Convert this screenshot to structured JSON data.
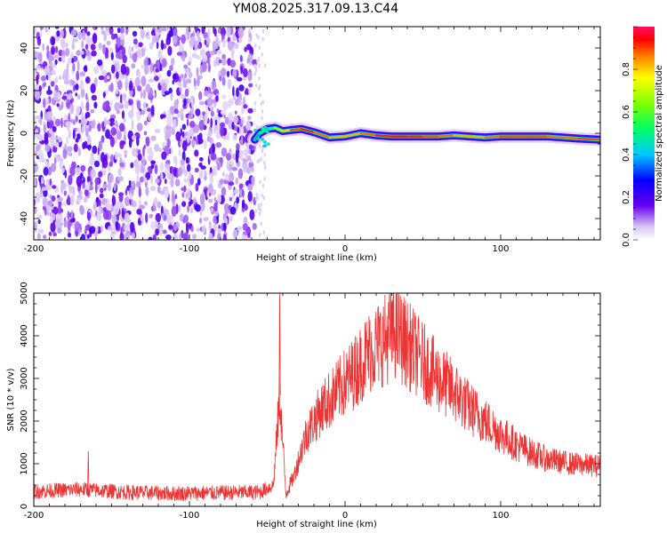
{
  "title": "YM08.2025.317.09.13.C44",
  "chart_data": [
    {
      "type": "heatmap",
      "title": "YM08.2025.317.09.13.C44",
      "xlabel": "Height of straight line (km)",
      "ylabel": "Frequency (Hz)",
      "xlim": [
        -200,
        164
      ],
      "ylim": [
        -50,
        50
      ],
      "x_ticks": [
        "-200",
        "-100",
        "0",
        "100"
      ],
      "y_ticks": [
        "40",
        "20",
        "0",
        "-20",
        "-40"
      ],
      "colorbar": {
        "label": "Normalized spectral amplitude",
        "range": [
          0,
          1
        ],
        "ticks": [
          "0.0",
          "0.2",
          "0.4",
          "0.6",
          "0.8"
        ]
      },
      "noise_region_x": [
        -200,
        -58
      ],
      "signal_track": [
        {
          "x": -58,
          "freq": -3,
          "amp": 0.3
        },
        {
          "x": -55,
          "freq": 0,
          "amp": 0.45
        },
        {
          "x": -50,
          "freq": 2,
          "amp": 0.5
        },
        {
          "x": -45,
          "freq": 2.5,
          "amp": 0.6
        },
        {
          "x": -40,
          "freq": 1,
          "amp": 0.75
        },
        {
          "x": -35,
          "freq": 1.5,
          "amp": 0.85
        },
        {
          "x": -28,
          "freq": 2,
          "amp": 0.95
        },
        {
          "x": -20,
          "freq": 0.5,
          "amp": 0.9
        },
        {
          "x": -10,
          "freq": -2,
          "amp": 0.85
        },
        {
          "x": 0,
          "freq": -1.5,
          "amp": 0.8
        },
        {
          "x": 10,
          "freq": 0,
          "amp": 0.85
        },
        {
          "x": 20,
          "freq": -1,
          "amp": 0.9
        },
        {
          "x": 30,
          "freq": -1.5,
          "amp": 0.95
        },
        {
          "x": 40,
          "freq": -1.5,
          "amp": 0.95
        },
        {
          "x": 50,
          "freq": -1.5,
          "amp": 0.9
        },
        {
          "x": 60,
          "freq": -1.5,
          "amp": 0.9
        },
        {
          "x": 70,
          "freq": -1,
          "amp": 0.85
        },
        {
          "x": 80,
          "freq": -1.5,
          "amp": 0.8
        },
        {
          "x": 90,
          "freq": -2,
          "amp": 0.85
        },
        {
          "x": 100,
          "freq": -1.5,
          "amp": 0.9
        },
        {
          "x": 110,
          "freq": -1.5,
          "amp": 0.9
        },
        {
          "x": 120,
          "freq": -1.5,
          "amp": 0.9
        },
        {
          "x": 130,
          "freq": -1.5,
          "amp": 0.9
        },
        {
          "x": 140,
          "freq": -2,
          "amp": 0.85
        },
        {
          "x": 150,
          "freq": -2.5,
          "amp": 0.9
        },
        {
          "x": 164,
          "freq": -3,
          "amp": 0.9
        }
      ]
    },
    {
      "type": "line",
      "xlabel": "Height of straight line (km)",
      "ylabel": "SNR (10 * v/v)",
      "xlim": [
        -200,
        164
      ],
      "ylim": [
        0,
        5000
      ],
      "x_ticks": [
        "-200",
        "-100",
        "0",
        "100"
      ],
      "y_ticks": [
        "5000",
        "4000",
        "3000",
        "2000",
        "1000",
        "0"
      ],
      "line_color": "#ee3333",
      "envelope": [
        {
          "x": -200,
          "snr": 350
        },
        {
          "x": -170,
          "snr": 400
        },
        {
          "x": -140,
          "snr": 330
        },
        {
          "x": -110,
          "snr": 300
        },
        {
          "x": -80,
          "snr": 320
        },
        {
          "x": -55,
          "snr": 330
        },
        {
          "x": -46,
          "snr": 500
        },
        {
          "x": -42,
          "snr": 2600
        },
        {
          "x": -38,
          "snr": 300
        },
        {
          "x": -33,
          "snr": 700
        },
        {
          "x": -25,
          "snr": 1700
        },
        {
          "x": -15,
          "snr": 2300
        },
        {
          "x": -5,
          "snr": 2700
        },
        {
          "x": 5,
          "snr": 3100
        },
        {
          "x": 15,
          "snr": 3600
        },
        {
          "x": 25,
          "snr": 3900
        },
        {
          "x": 32,
          "snr": 4100
        },
        {
          "x": 40,
          "snr": 3800
        },
        {
          "x": 50,
          "snr": 3400
        },
        {
          "x": 60,
          "snr": 3000
        },
        {
          "x": 70,
          "snr": 2700
        },
        {
          "x": 80,
          "snr": 2300
        },
        {
          "x": 90,
          "snr": 2000
        },
        {
          "x": 100,
          "snr": 1700
        },
        {
          "x": 110,
          "snr": 1450
        },
        {
          "x": 120,
          "snr": 1250
        },
        {
          "x": 130,
          "snr": 1100
        },
        {
          "x": 145,
          "snr": 1000
        },
        {
          "x": 164,
          "snr": 950
        }
      ],
      "spikes": [
        {
          "x": -42,
          "snr": 5000
        },
        {
          "x": -165,
          "snr": 1300
        },
        {
          "x": 30,
          "snr": 4800
        }
      ]
    }
  ]
}
